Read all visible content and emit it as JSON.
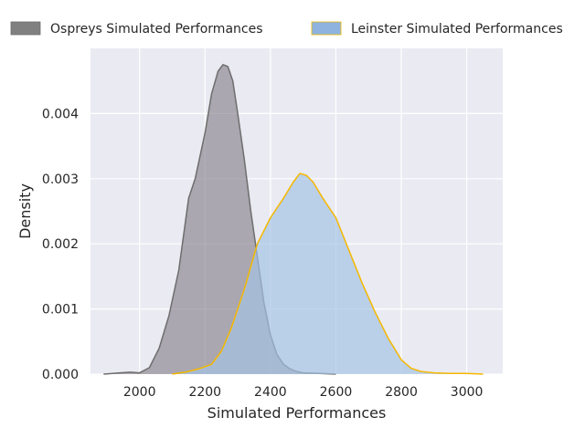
{
  "chart_data": {
    "type": "area",
    "xlabel": "Simulated Performances",
    "ylabel": "Density",
    "xlim": [
      1850,
      3110
    ],
    "ylim": [
      0,
      0.005
    ],
    "x_ticks": [
      2000,
      2200,
      2400,
      2600,
      2800,
      3000
    ],
    "x_tick_labels": [
      "2000",
      "2200",
      "2400",
      "2600",
      "2800",
      "3000"
    ],
    "y_ticks": [
      0,
      0.001,
      0.002,
      0.003,
      0.004
    ],
    "y_tick_labels": [
      "0.000",
      "0.001",
      "0.002",
      "0.003",
      "0.004"
    ],
    "grid": true,
    "legend_position": "top",
    "series": [
      {
        "name": "Ospreys Simulated Performances",
        "fill_color": "#8c8790",
        "line_color": "#6e6e6e",
        "legend_color": "#808080",
        "x": [
          1890,
          1940,
          1970,
          2000,
          2030,
          2060,
          2090,
          2120,
          2150,
          2170,
          2200,
          2220,
          2240,
          2255,
          2270,
          2285,
          2300,
          2320,
          2340,
          2360,
          2380,
          2400,
          2420,
          2440,
          2460,
          2480,
          2500,
          2550,
          2600
        ],
        "y": [
          0,
          2e-05,
          3e-05,
          2e-05,
          0.0001,
          0.0004,
          0.0009,
          0.0016,
          0.0027,
          0.003,
          0.0037,
          0.0043,
          0.00465,
          0.00475,
          0.00472,
          0.0045,
          0.004,
          0.0033,
          0.0025,
          0.0018,
          0.0011,
          0.0006,
          0.0003,
          0.00015,
          8e-05,
          4e-05,
          2e-05,
          1e-05,
          0
        ]
      },
      {
        "name": "Leinster Simulated Performances",
        "fill_color": "#a4c2e3",
        "line_color": "#f5b800",
        "legend_color": "#8db3de",
        "x": [
          2100,
          2140,
          2180,
          2220,
          2250,
          2280,
          2320,
          2360,
          2400,
          2440,
          2470,
          2490,
          2510,
          2530,
          2560,
          2600,
          2640,
          2680,
          2720,
          2760,
          2800,
          2830,
          2860,
          2900,
          2950,
          3000,
          3050
        ],
        "y": [
          0,
          3e-05,
          8e-05,
          0.00015,
          0.00035,
          0.0007,
          0.0013,
          0.002,
          0.0024,
          0.0027,
          0.00295,
          0.00308,
          0.00305,
          0.00295,
          0.0027,
          0.0024,
          0.0019,
          0.0014,
          0.00095,
          0.00055,
          0.00022,
          9e-05,
          4e-05,
          2e-05,
          1e-05,
          1e-05,
          0
        ]
      }
    ]
  }
}
